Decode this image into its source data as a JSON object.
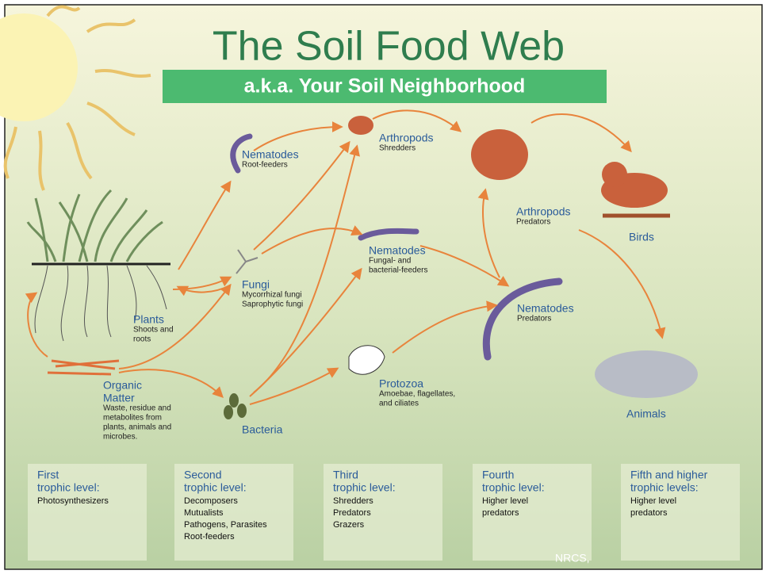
{
  "title": "The Soil Food Web",
  "subtitle": "a.k.a. Your Soil Neighborhood",
  "nodes": [
    {
      "label": [
        "Nematodes"
      ],
      "description": [
        "Root-feeders"
      ]
    },
    {
      "label": [
        "Arthropods"
      ],
      "description": [
        "Shredders"
      ]
    },
    {
      "label": [
        "Arthropods"
      ],
      "description": [
        "Predators"
      ]
    },
    {
      "label": [
        "Birds"
      ],
      "description": []
    },
    {
      "label": [
        "Plants"
      ],
      "description": [
        "Shoots and",
        "roots"
      ]
    },
    {
      "label": [
        "Fungi"
      ],
      "description": [
        "Mycorrhizal fungi",
        "Saprophytic fungi"
      ]
    },
    {
      "label": [
        "Nematodes"
      ],
      "description": [
        "Fungal- and",
        "bacterial-feeders"
      ]
    },
    {
      "label": [
        "Nematodes"
      ],
      "description": [
        "Predators"
      ]
    },
    {
      "label": [
        "Organic",
        "Matter"
      ],
      "description": [
        "Waste, residue and",
        "metabolites from",
        "plants, animals and",
        "microbes."
      ]
    },
    {
      "label": [
        "Bacteria"
      ],
      "description": []
    },
    {
      "label": [
        "Protozoa"
      ],
      "description": [
        "Amoebae, flagellates,",
        "and ciliates"
      ]
    },
    {
      "label": [
        "Animals"
      ],
      "description": []
    }
  ],
  "trophic_levels": [
    {
      "title": [
        "First",
        "trophic level:"
      ],
      "items": [
        "Photosynthesizers"
      ]
    },
    {
      "title": [
        "Second",
        "trophic level:"
      ],
      "items": [
        "Decomposers",
        "Mutualists",
        "Pathogens, Parasites",
        "Root-feeders"
      ]
    },
    {
      "title": [
        "Third",
        "trophic level:"
      ],
      "items": [
        "Shredders",
        "Predators",
        "Grazers"
      ]
    },
    {
      "title": [
        "Fourth",
        "trophic level:"
      ],
      "items": [
        "Higher level",
        "predators"
      ]
    },
    {
      "title": [
        "Fifth and higher",
        "trophic levels:"
      ],
      "items": [
        "Higher level",
        "predators"
      ]
    }
  ],
  "credit": "NRCS,"
}
